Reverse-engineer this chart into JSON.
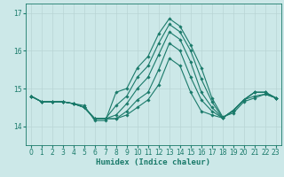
{
  "title": "",
  "xlabel": "Humidex (Indice chaleur)",
  "ylabel": "",
  "xlim": [
    -0.5,
    23.5
  ],
  "ylim": [
    13.5,
    17.25
  ],
  "yticks": [
    14,
    15,
    16,
    17
  ],
  "xticks": [
    0,
    1,
    2,
    3,
    4,
    5,
    6,
    7,
    8,
    9,
    10,
    11,
    12,
    13,
    14,
    15,
    16,
    17,
    18,
    19,
    20,
    21,
    22,
    23
  ],
  "bg_color": "#cce8e8",
  "line_color": "#1a7a6a",
  "grid_color": "#b8d4d4",
  "series": [
    [
      14.8,
      14.65,
      14.65,
      14.65,
      14.6,
      14.55,
      14.15,
      14.15,
      14.9,
      15.0,
      15.55,
      15.85,
      16.45,
      16.85,
      16.65,
      16.15,
      15.55,
      14.75,
      14.25,
      14.35,
      14.65,
      14.75,
      14.85,
      14.75
    ],
    [
      14.8,
      14.65,
      14.65,
      14.65,
      14.6,
      14.5,
      14.2,
      14.2,
      14.55,
      14.8,
      15.3,
      15.6,
      16.2,
      16.7,
      16.5,
      16.0,
      15.25,
      14.65,
      14.22,
      14.4,
      14.7,
      14.8,
      14.85,
      14.75
    ],
    [
      14.8,
      14.65,
      14.65,
      14.65,
      14.6,
      14.5,
      14.2,
      14.2,
      14.3,
      14.6,
      15.0,
      15.3,
      15.9,
      16.5,
      16.3,
      15.7,
      14.9,
      14.5,
      14.22,
      14.42,
      14.7,
      14.9,
      14.9,
      14.75
    ],
    [
      14.8,
      14.65,
      14.65,
      14.65,
      14.6,
      14.5,
      14.2,
      14.2,
      14.2,
      14.4,
      14.7,
      14.9,
      15.5,
      16.2,
      16.0,
      15.3,
      14.7,
      14.4,
      14.22,
      14.42,
      14.7,
      14.9,
      14.9,
      14.75
    ],
    [
      14.8,
      14.65,
      14.65,
      14.65,
      14.6,
      14.5,
      14.2,
      14.2,
      14.2,
      14.3,
      14.5,
      14.7,
      15.1,
      15.8,
      15.6,
      14.9,
      14.4,
      14.3,
      14.22,
      14.42,
      14.7,
      14.9,
      14.9,
      14.75
    ]
  ]
}
